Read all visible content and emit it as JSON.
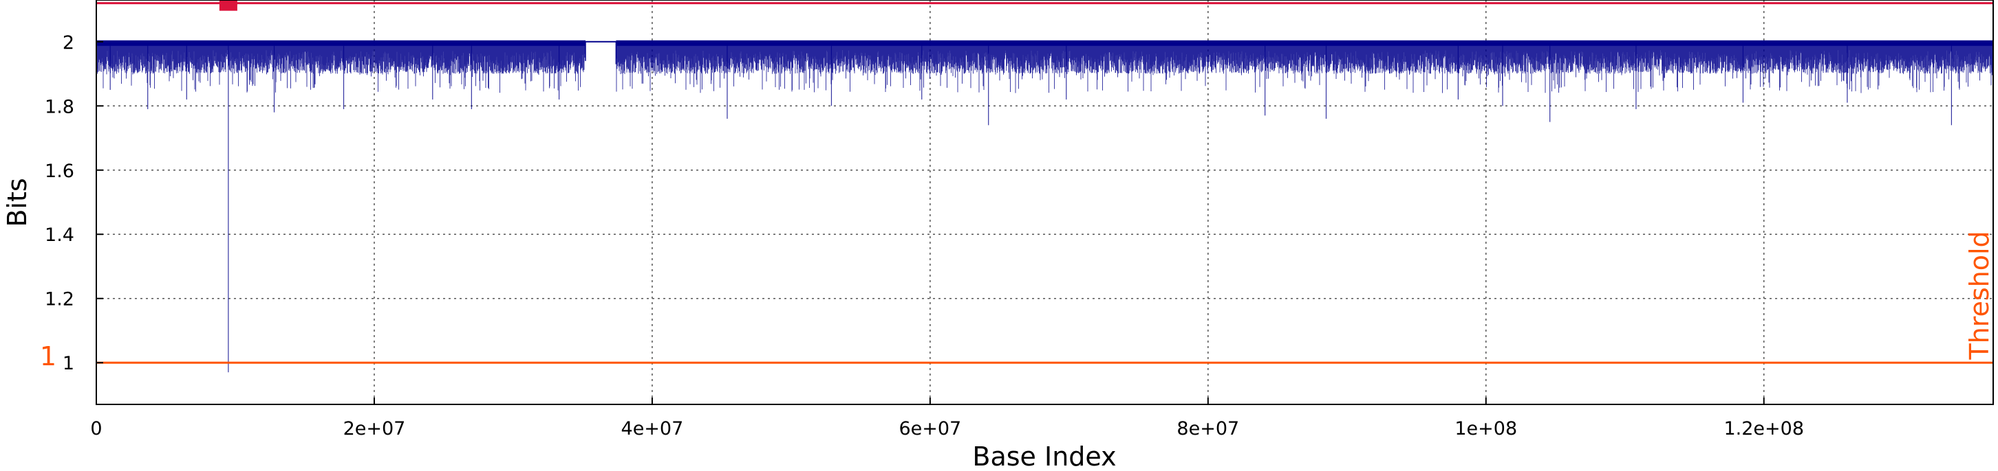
{
  "colors": {
    "series": "#00008b",
    "threshold": "#ff5500",
    "top_line": "#dc143c",
    "marker": "#dc143c"
  },
  "chart_data": {
    "type": "line",
    "xlabel": "Base Index",
    "ylabel": "Bits",
    "xlim": [
      0,
      136500000
    ],
    "ylim": [
      0.87,
      2.13
    ],
    "grid": true,
    "x_ticks": [
      {
        "value": 0,
        "label": "0"
      },
      {
        "value": 20000000,
        "label": "2e+07"
      },
      {
        "value": 40000000,
        "label": "4e+07"
      },
      {
        "value": 60000000,
        "label": "6e+07"
      },
      {
        "value": 80000000,
        "label": "8e+07"
      },
      {
        "value": 100000000,
        "label": "1e+08"
      },
      {
        "value": 120000000,
        "label": "1.2e+08"
      }
    ],
    "y_ticks": [
      {
        "value": 1,
        "label": "1"
      },
      {
        "value": 1.2,
        "label": "1.2"
      },
      {
        "value": 1.4,
        "label": "1.4"
      },
      {
        "value": 1.6,
        "label": "1.6"
      },
      {
        "value": 1.8,
        "label": "1.8"
      },
      {
        "value": 2,
        "label": "2"
      }
    ],
    "series_band": {
      "max": 2.0,
      "typical_min": 1.9
    },
    "gap": {
      "x": [
        35200000,
        37400000
      ],
      "value": 2.0
    },
    "dips": [
      {
        "x": 9500000,
        "y": 0.97
      },
      {
        "x": 1000000,
        "y": 1.85
      },
      {
        "x": 3700000,
        "y": 1.79
      },
      {
        "x": 6500000,
        "y": 1.82
      },
      {
        "x": 12800000,
        "y": 1.78
      },
      {
        "x": 17800000,
        "y": 1.79
      },
      {
        "x": 24200000,
        "y": 1.82
      },
      {
        "x": 27000000,
        "y": 1.79
      },
      {
        "x": 33300000,
        "y": 1.82
      },
      {
        "x": 45400000,
        "y": 1.76
      },
      {
        "x": 52900000,
        "y": 1.8
      },
      {
        "x": 59400000,
        "y": 1.82
      },
      {
        "x": 64200000,
        "y": 1.74
      },
      {
        "x": 69800000,
        "y": 1.82
      },
      {
        "x": 84100000,
        "y": 1.77
      },
      {
        "x": 88500000,
        "y": 1.76
      },
      {
        "x": 98000000,
        "y": 1.82
      },
      {
        "x": 101200000,
        "y": 1.8
      },
      {
        "x": 104600000,
        "y": 1.75
      },
      {
        "x": 110800000,
        "y": 1.79
      },
      {
        "x": 118500000,
        "y": 1.81
      },
      {
        "x": 126000000,
        "y": 1.81
      },
      {
        "x": 133500000,
        "y": 1.74
      }
    ],
    "threshold": {
      "value": 1,
      "label": "Threshold",
      "axis_label": "1"
    },
    "top_line": {
      "value": 2.12
    },
    "marker": {
      "x": 9500000,
      "y": 2.12
    }
  }
}
